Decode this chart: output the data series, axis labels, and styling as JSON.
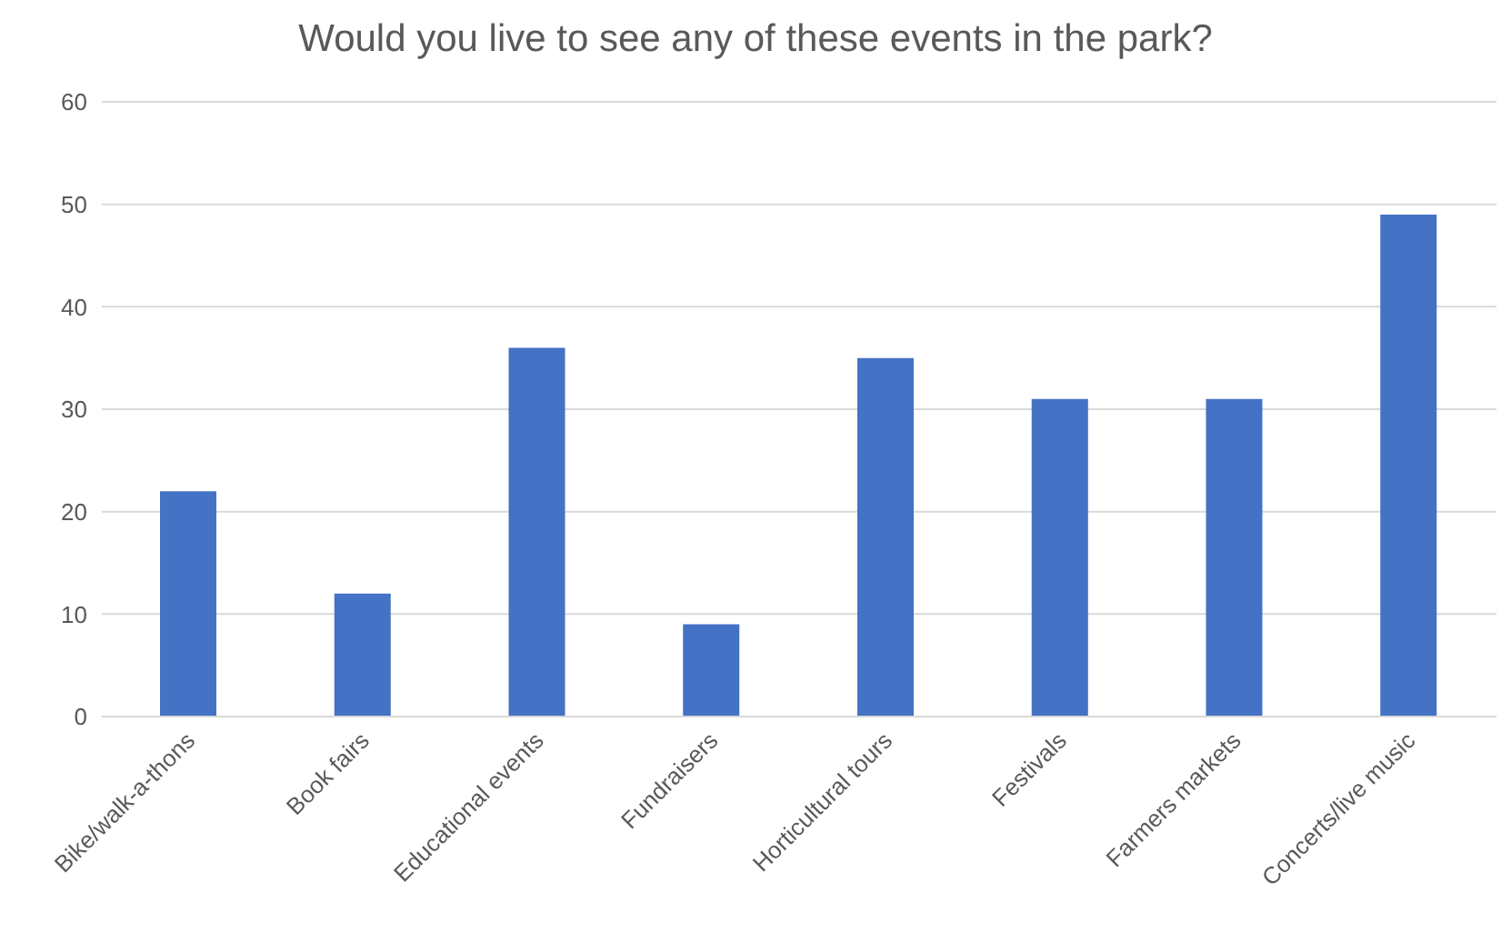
{
  "chart_data": {
    "type": "bar",
    "title": "Would you live to see any of these events in the park?",
    "categories": [
      "Bike/walk-a-thons",
      "Book fairs",
      "Educational events",
      "Fundraisers",
      "Horticultural tours",
      "Festivals",
      "Farmers markets",
      "Concerts/live music"
    ],
    "values": [
      22,
      12,
      36,
      9,
      35,
      31,
      31,
      49
    ],
    "color": "#4472c4",
    "ylim": [
      0,
      60
    ],
    "yticks": [
      0,
      10,
      20,
      30,
      40,
      50,
      60
    ],
    "grid": "y"
  }
}
